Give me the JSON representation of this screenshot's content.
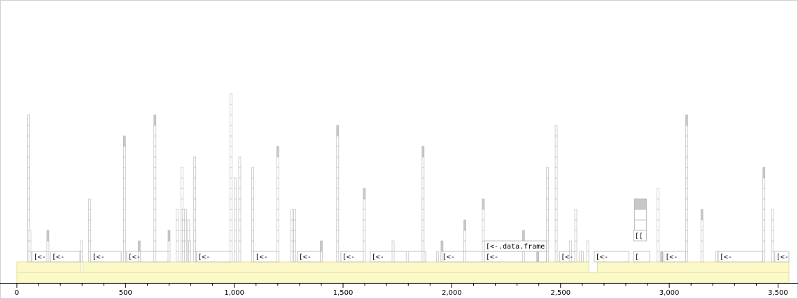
{
  "chart_data": {
    "type": "flame",
    "xlim": [
      0,
      3550
    ],
    "x_ticks": [
      0,
      500,
      1000,
      1500,
      2000,
      2500,
      3000,
      3500
    ],
    "x_tick_labels": [
      "0",
      "500",
      "1,000",
      "1,500",
      "2,000",
      "2,500",
      "3,000",
      "3,500"
    ],
    "colors": {
      "yellow_fill": "#fcf9c8",
      "yellow_stroke": "#dcd88f",
      "cell_stroke": "#b4b4b4",
      "dark_fill": "#c8c8c8",
      "axis": "#000000",
      "border": "#d0d0d0"
    },
    "level0": [
      {
        "start": 0,
        "end": 3550,
        "label": ""
      }
    ],
    "level1": [
      {
        "start": 0,
        "end": 295,
        "label": ""
      },
      {
        "start": 305,
        "end": 2630,
        "label": ""
      },
      {
        "start": 2670,
        "end": 3550,
        "label": ""
      }
    ],
    "level2_labeled": [
      {
        "start": 70,
        "end": 145,
        "label": "[<-"
      },
      {
        "start": 155,
        "end": 290,
        "label": "[<-"
      },
      {
        "start": 340,
        "end": 480,
        "label": "[<-"
      },
      {
        "start": 505,
        "end": 700,
        "label": "[<-"
      },
      {
        "start": 825,
        "end": 990,
        "label": "[<-"
      },
      {
        "start": 1090,
        "end": 1205,
        "label": "[<-"
      },
      {
        "start": 1290,
        "end": 1395,
        "label": "[<-"
      },
      {
        "start": 1490,
        "end": 1595,
        "label": "[<-"
      },
      {
        "start": 1625,
        "end": 1880,
        "label": "[<-"
      },
      {
        "start": 1950,
        "end": 2140,
        "label": "[<-"
      },
      {
        "start": 2150,
        "end": 2435,
        "label": "[<-"
      },
      {
        "start": 2495,
        "end": 2570,
        "label": "[<-"
      },
      {
        "start": 2655,
        "end": 2815,
        "label": "[<-"
      },
      {
        "start": 2835,
        "end": 2910,
        "label": "["
      },
      {
        "start": 2975,
        "end": 3075,
        "label": "[<-"
      },
      {
        "start": 3225,
        "end": 3430,
        "label": "[<-"
      },
      {
        "start": 3485,
        "end": 3550,
        "label": "[<-"
      }
    ],
    "special_frames": [
      {
        "start": 2150,
        "end": 2435,
        "level": 3,
        "label": "[<-.data.frame"
      },
      {
        "start": 2835,
        "end": 2895,
        "level": 4,
        "label": "[["
      }
    ],
    "stacks": [
      {
        "x": 55,
        "depth": 14,
        "dark": false
      },
      {
        "x": 60,
        "depth": 3,
        "dark": false
      },
      {
        "x": 143,
        "depth": 3,
        "dark": true
      },
      {
        "x": 297,
        "depth": 2,
        "dark": false
      },
      {
        "x": 335,
        "depth": 6,
        "dark": false
      },
      {
        "x": 495,
        "depth": 12,
        "dark": true
      },
      {
        "x": 563,
        "depth": 2,
        "dark": true
      },
      {
        "x": 635,
        "depth": 14,
        "dark": true
      },
      {
        "x": 700,
        "depth": 3,
        "dark": true
      },
      {
        "x": 738,
        "depth": 5,
        "dark": false
      },
      {
        "x": 760,
        "depth": 9,
        "dark": false
      },
      {
        "x": 765,
        "depth": 5,
        "dark": false
      },
      {
        "x": 775,
        "depth": 5,
        "dark": false
      },
      {
        "x": 790,
        "depth": 4,
        "dark": false
      },
      {
        "x": 795,
        "depth": 2,
        "dark": false
      },
      {
        "x": 818,
        "depth": 10,
        "dark": false
      },
      {
        "x": 985,
        "depth": 16,
        "dark": false
      },
      {
        "x": 1005,
        "depth": 8,
        "dark": false
      },
      {
        "x": 1025,
        "depth": 10,
        "dark": false
      },
      {
        "x": 1085,
        "depth": 9,
        "dark": false
      },
      {
        "x": 1200,
        "depth": 11,
        "dark": true
      },
      {
        "x": 1265,
        "depth": 5,
        "dark": false
      },
      {
        "x": 1278,
        "depth": 5,
        "dark": false
      },
      {
        "x": 1400,
        "depth": 2,
        "dark": true
      },
      {
        "x": 1475,
        "depth": 13,
        "dark": true
      },
      {
        "x": 1598,
        "depth": 7,
        "dark": true
      },
      {
        "x": 1730,
        "depth": 2,
        "dark": false
      },
      {
        "x": 1795,
        "depth": 1,
        "dark": false
      },
      {
        "x": 1868,
        "depth": 11,
        "dark": true
      },
      {
        "x": 1935,
        "depth": 1,
        "dark": false
      },
      {
        "x": 1955,
        "depth": 2,
        "dark": true
      },
      {
        "x": 2060,
        "depth": 4,
        "dark": true
      },
      {
        "x": 2145,
        "depth": 6,
        "dark": true
      },
      {
        "x": 2330,
        "depth": 3,
        "dark": true
      },
      {
        "x": 2395,
        "depth": 1,
        "dark": true
      },
      {
        "x": 2440,
        "depth": 9,
        "dark": false
      },
      {
        "x": 2480,
        "depth": 13,
        "dark": false
      },
      {
        "x": 2545,
        "depth": 2,
        "dark": false
      },
      {
        "x": 2570,
        "depth": 5,
        "dark": false
      },
      {
        "x": 2590,
        "depth": 1,
        "dark": false
      },
      {
        "x": 2600,
        "depth": 1,
        "dark": false
      },
      {
        "x": 2625,
        "depth": 2,
        "dark": false
      },
      {
        "x": 2948,
        "depth": 7,
        "dark": false
      },
      {
        "x": 2965,
        "depth": 1,
        "dark": true
      },
      {
        "x": 3080,
        "depth": 14,
        "dark": true
      },
      {
        "x": 3150,
        "depth": 5,
        "dark": true
      },
      {
        "x": 3218,
        "depth": 1,
        "dark": false
      },
      {
        "x": 3435,
        "depth": 9,
        "dark": true
      },
      {
        "x": 3475,
        "depth": 5,
        "dark": false
      }
    ],
    "tall_stack": {
      "start": 2840,
      "end": 2895,
      "from_level": 5,
      "to_level": 8,
      "dark_top": true
    }
  }
}
